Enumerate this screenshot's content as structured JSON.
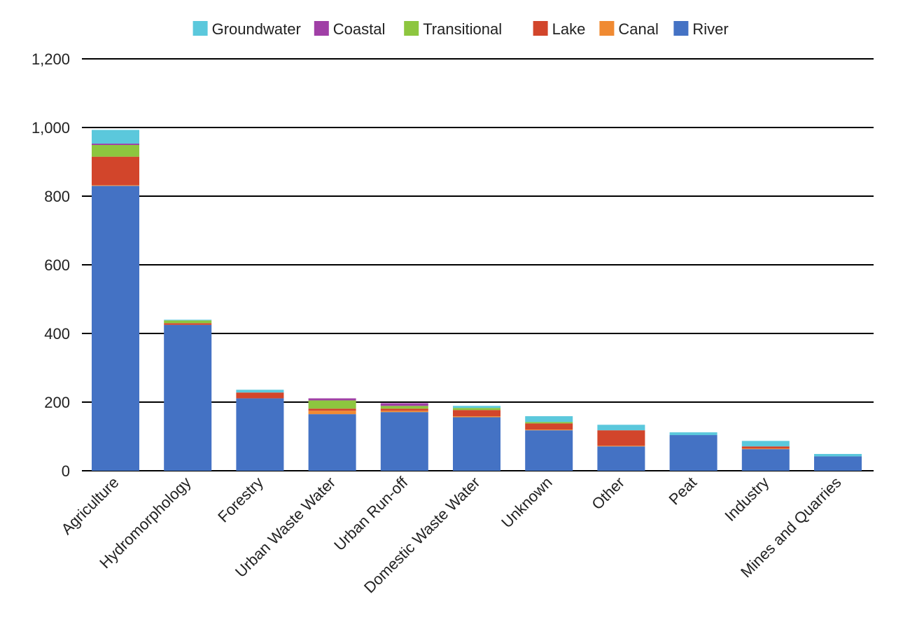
{
  "chart_data": {
    "type": "bar",
    "stacked": true,
    "title": "",
    "xlabel": "",
    "ylabel": "",
    "ylim": [
      0,
      1200
    ],
    "yticks": [
      0,
      200,
      400,
      600,
      800,
      1000,
      1200
    ],
    "ytick_labels": [
      "0",
      "200",
      "400",
      "600",
      "800",
      "1,000",
      "1,200"
    ],
    "grid": true,
    "legend_position": "top-center",
    "legend_order": [
      "Groundwater",
      "Coastal",
      "Transitional",
      "Lake",
      "Canal",
      "River"
    ],
    "categories": [
      "Agriculture",
      "Hydromorphology",
      "Forestry",
      "Urban Waste Water",
      "Urban Run-off",
      "Domestic Waste Water",
      "Unknown",
      "Other",
      "Peat",
      "Industry",
      "Mines and Quarries"
    ],
    "series": [
      {
        "name": "River",
        "color": "#4472c4",
        "values": [
          830,
          425,
          211,
          165,
          171,
          156,
          118,
          71,
          104,
          63,
          42
        ]
      },
      {
        "name": "Canal",
        "color": "#f08a32",
        "values": [
          2,
          0,
          0,
          10,
          4,
          3,
          2,
          2,
          0,
          2,
          0
        ]
      },
      {
        "name": "Lake",
        "color": "#d2452b",
        "values": [
          83,
          5,
          17,
          6,
          6,
          18,
          18,
          45,
          0,
          6,
          0
        ]
      },
      {
        "name": "Transitional",
        "color": "#8dc63f",
        "values": [
          34,
          8,
          0,
          24,
          8,
          6,
          4,
          0,
          0,
          0,
          0
        ]
      },
      {
        "name": "Coastal",
        "color": "#a03fa6",
        "values": [
          4,
          0,
          0,
          6,
          8,
          0,
          0,
          0,
          0,
          0,
          0
        ]
      },
      {
        "name": "Groundwater",
        "color": "#5bc8dc",
        "values": [
          40,
          2,
          8,
          0,
          0,
          6,
          17,
          16,
          8,
          16,
          7
        ]
      }
    ]
  }
}
